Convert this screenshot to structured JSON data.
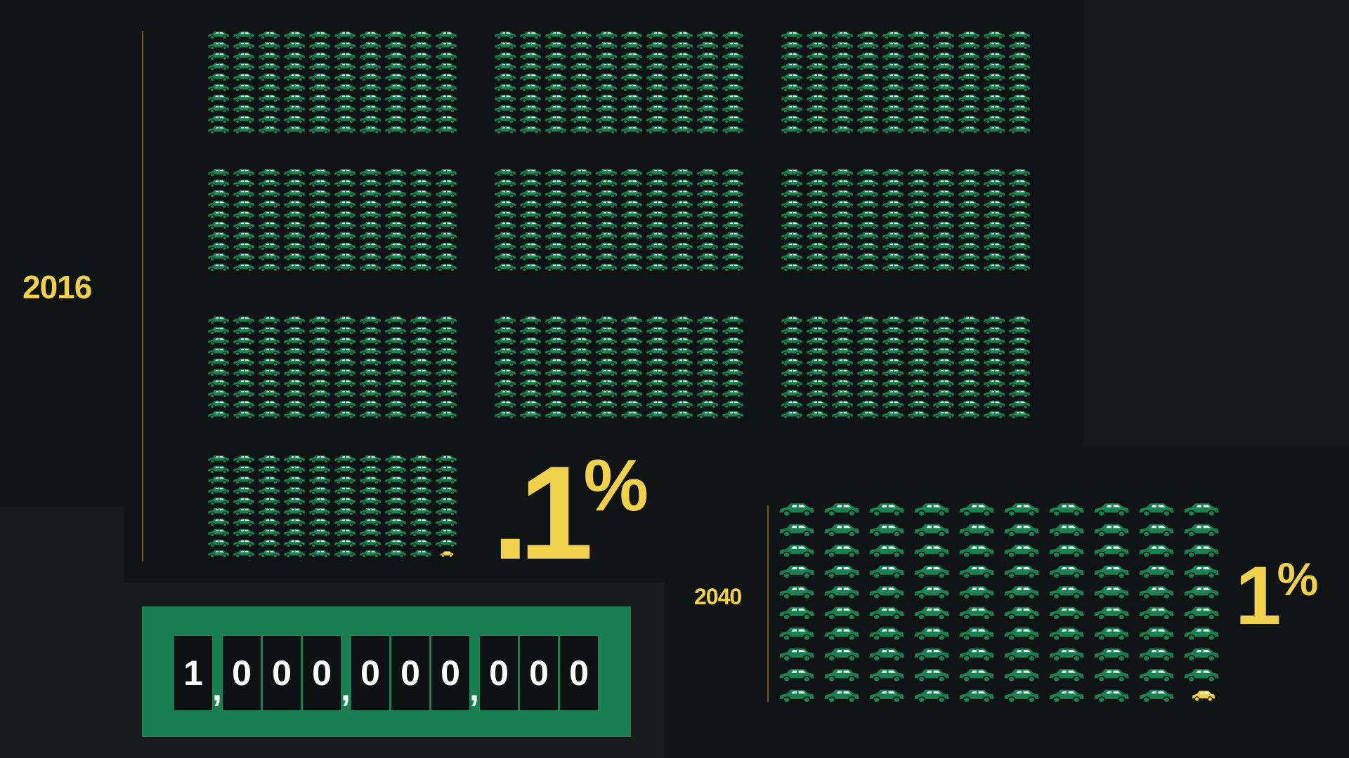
{
  "chart_data": [
    {
      "type": "pictogram",
      "year": "2016",
      "percent_value": ".1",
      "percent_symbol": "%",
      "total_icons": 1000,
      "highlighted_icons": 1,
      "blocks": {
        "rows": 4,
        "cols": 3,
        "filled": 10
      },
      "block_grid": {
        "rows": 10,
        "cols": 10
      }
    },
    {
      "type": "pictogram",
      "year": "2040",
      "percent_value": "1",
      "percent_symbol": "%",
      "total_icons": 100,
      "highlighted_icons": 1,
      "grid": {
        "rows": 10,
        "cols": 10
      }
    }
  ],
  "counter": {
    "digits": [
      "1",
      "0",
      "0",
      "0",
      "0",
      "0",
      "0",
      "0",
      "0",
      "0"
    ],
    "separator": ","
  },
  "colors": {
    "background": "#111414",
    "car": "#1b7f54",
    "car_window": "#e9f3ee",
    "highlight": "#f1d04b",
    "accent_text": "#f1d04b",
    "counter_bg": "#1b7f54"
  },
  "icons": {
    "car": "car-icon",
    "highlight_car": "car-icon-highlight"
  }
}
